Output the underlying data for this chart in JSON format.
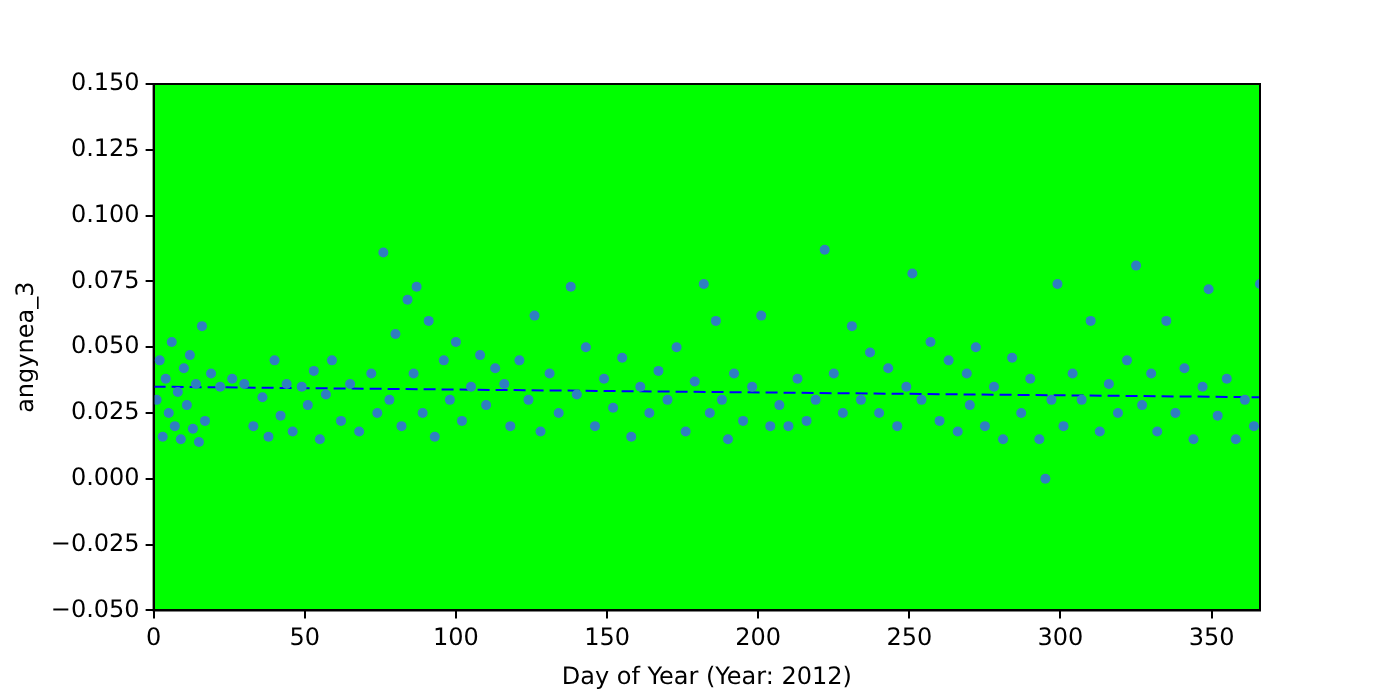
{
  "chart_data": {
    "type": "scatter",
    "xlabel": "Day of Year (Year: 2012)",
    "ylabel": "angynea_3",
    "xlim": [
      0,
      366
    ],
    "xticks": [
      0,
      50,
      100,
      150,
      200,
      250,
      300,
      350
    ],
    "ylim": [
      -0.05,
      0.15
    ],
    "yticks": [
      {
        "value": -0.05,
        "label": "−0.050"
      },
      {
        "value": -0.025,
        "label": "−0.025"
      },
      {
        "value": 0,
        "label": "0.000"
      },
      {
        "value": 0.025,
        "label": "0.025"
      },
      {
        "value": 0.05,
        "label": "0.050"
      },
      {
        "value": 0.075,
        "label": "0.075"
      },
      {
        "value": 0.1,
        "label": "0.100"
      },
      {
        "value": 0.125,
        "label": "0.125"
      },
      {
        "value": 0.15,
        "label": "0.150"
      }
    ],
    "grid": false,
    "legend": false,
    "series": [
      {
        "color": "#2f7fc1",
        "marker": "circle",
        "x": [
          1,
          2,
          3,
          4,
          5,
          6,
          7,
          8,
          9,
          10,
          11,
          12,
          13,
          14,
          15,
          16,
          17,
          19,
          22,
          26,
          30,
          33,
          36,
          38,
          40,
          42,
          44,
          46,
          49,
          51,
          53,
          55,
          57,
          59,
          62,
          65,
          68,
          72,
          74,
          76,
          78,
          80,
          82,
          84,
          86,
          87,
          89,
          91,
          93,
          96,
          98,
          100,
          102,
          105,
          108,
          110,
          113,
          116,
          118,
          121,
          124,
          126,
          128,
          131,
          134,
          138,
          140,
          143,
          146,
          149,
          152,
          155,
          158,
          161,
          164,
          167,
          170,
          173,
          176,
          179,
          182,
          184,
          186,
          188,
          190,
          192,
          195,
          198,
          201,
          204,
          207,
          210,
          213,
          216,
          219,
          222,
          225,
          228,
          231,
          234,
          237,
          240,
          243,
          246,
          249,
          251,
          254,
          257,
          260,
          263,
          266,
          269,
          270,
          272,
          275,
          278,
          281,
          284,
          287,
          290,
          293,
          295,
          297,
          299,
          301,
          304,
          307,
          310,
          313,
          316,
          319,
          322,
          325,
          327,
          330,
          332,
          335,
          338,
          341,
          344,
          347,
          349,
          352,
          355,
          358,
          361,
          364,
          366
        ],
        "values": [
          0.03,
          0.045,
          0.016,
          0.038,
          0.025,
          0.052,
          0.02,
          0.033,
          0.015,
          0.042,
          0.028,
          0.047,
          0.019,
          0.036,
          0.014,
          0.058,
          0.022,
          0.04,
          0.035,
          0.038,
          0.036,
          0.02,
          0.031,
          0.016,
          0.045,
          0.024,
          0.036,
          0.018,
          0.035,
          0.028,
          0.041,
          0.015,
          0.032,
          0.045,
          0.022,
          0.036,
          0.018,
          0.04,
          0.025,
          0.086,
          0.03,
          0.055,
          0.02,
          0.068,
          0.04,
          0.073,
          0.025,
          0.06,
          0.016,
          0.045,
          0.03,
          0.052,
          0.022,
          0.035,
          0.047,
          0.028,
          0.042,
          0.036,
          0.02,
          0.045,
          0.03,
          0.062,
          0.018,
          0.04,
          0.025,
          0.073,
          0.032,
          0.05,
          0.02,
          0.038,
          0.027,
          0.046,
          0.016,
          0.035,
          0.025,
          0.041,
          0.03,
          0.05,
          0.018,
          0.037,
          0.074,
          0.025,
          0.06,
          0.03,
          0.015,
          0.04,
          0.022,
          0.035,
          0.062,
          0.02,
          0.028,
          0.02,
          0.038,
          0.022,
          0.03,
          0.087,
          0.04,
          0.025,
          0.058,
          0.03,
          0.048,
          0.025,
          0.042,
          0.02,
          0.035,
          0.078,
          0.03,
          0.052,
          0.022,
          0.045,
          0.018,
          0.04,
          0.028,
          0.05,
          0.02,
          0.035,
          0.015,
          0.046,
          0.025,
          0.038,
          0.015,
          0.0,
          0.03,
          0.074,
          0.02,
          0.04,
          0.03,
          0.06,
          0.018,
          0.036,
          0.025,
          0.045,
          0.081,
          0.028,
          0.04,
          0.018,
          0.06,
          0.025,
          0.042,
          0.015,
          0.035,
          0.072,
          0.024,
          0.038,
          0.015,
          0.03,
          0.02,
          0.074
        ]
      },
      {
        "type": "line",
        "color": "#0000ff",
        "marker": "none",
        "line_style": "dashed",
        "x": [
          0,
          366
        ],
        "values": [
          0.035,
          0.031
        ]
      }
    ]
  }
}
